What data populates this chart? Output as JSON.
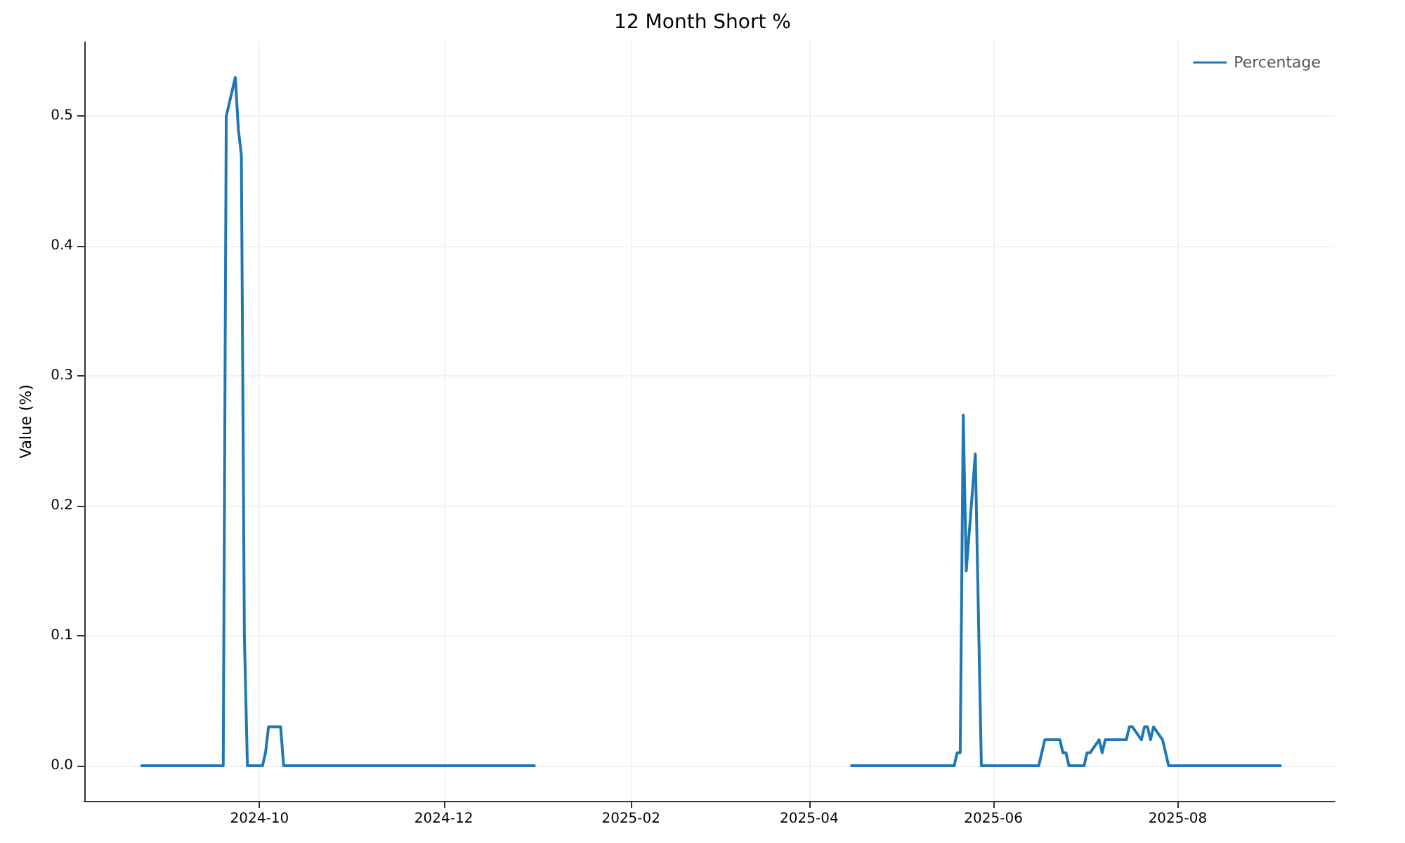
{
  "chart_data": {
    "type": "line",
    "title": "12 Month Short %",
    "ylabel": "Value (%)",
    "x": [
      "2024-08-23",
      "2024-09-19",
      "2024-09-20",
      "2024-09-23",
      "2024-09-24",
      "2024-09-25",
      "2024-09-26",
      "2024-09-27",
      "2024-10-02",
      "2024-10-03",
      "2024-10-04",
      "2024-10-08",
      "2024-10-09",
      "2024-12-31",
      "2025-02-15",
      "2025-04-15",
      "2025-05-19",
      "2025-05-20",
      "2025-05-21",
      "2025-05-22",
      "2025-05-23",
      "2025-05-26",
      "2025-05-27",
      "2025-05-28",
      "2025-06-16",
      "2025-06-18",
      "2025-06-23",
      "2025-06-24",
      "2025-06-25",
      "2025-06-26",
      "2025-07-01",
      "2025-07-02",
      "2025-07-03",
      "2025-07-06",
      "2025-07-07",
      "2025-07-08",
      "2025-07-15",
      "2025-07-16",
      "2025-07-17",
      "2025-07-20",
      "2025-07-21",
      "2025-07-22",
      "2025-07-23",
      "2025-07-24",
      "2025-07-27",
      "2025-07-29",
      "2025-09-04"
    ],
    "series": [
      {
        "name": "Percentage",
        "color": "#1f77b4",
        "values": [
          0,
          0,
          0.5,
          0.53,
          0.49,
          0.47,
          0.1,
          0,
          0,
          0.01,
          0.03,
          0.03,
          0,
          0,
          null,
          0,
          0,
          0.01,
          0.01,
          0.27,
          0.15,
          0.24,
          0.12,
          0,
          0,
          0.02,
          0.02,
          0.01,
          0.01,
          0,
          0,
          0.01,
          0.01,
          0.02,
          0.01,
          0.02,
          0.02,
          0.03,
          0.03,
          0.02,
          0.03,
          0.03,
          0.02,
          0.03,
          0.02,
          0,
          0
        ]
      }
    ],
    "xlim": [
      "2024-08-04",
      "2025-09-22"
    ],
    "xticks": [
      {
        "value": "2024-10",
        "label": "2024-10"
      },
      {
        "value": "2024-12",
        "label": "2024-12"
      },
      {
        "value": "2025-02",
        "label": "2025-02"
      },
      {
        "value": "2025-04",
        "label": "2025-04"
      },
      {
        "value": "2025-06",
        "label": "2025-06"
      },
      {
        "value": "2025-08",
        "label": "2025-08"
      }
    ],
    "ylim": [
      -0.027,
      0.557
    ],
    "yticks": [
      {
        "value": 0,
        "label": "0.0"
      },
      {
        "value": 0.1,
        "label": "0.1"
      },
      {
        "value": 0.2,
        "label": "0.2"
      },
      {
        "value": 0.3,
        "label": "0.3"
      },
      {
        "value": 0.4,
        "label": "0.4"
      },
      {
        "value": 0.5,
        "label": "0.5"
      }
    ],
    "grid": true,
    "legend": "top right",
    "marker": "none",
    "line_style": "solid"
  }
}
